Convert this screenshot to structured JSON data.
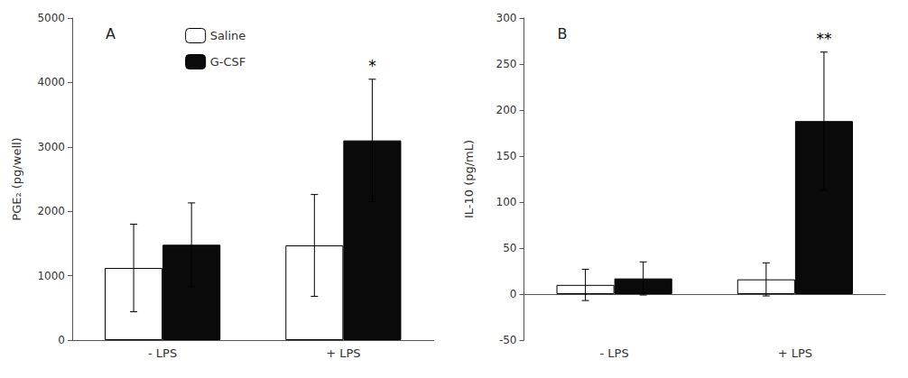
{
  "chart_data": [
    {
      "type": "bar",
      "title": "A",
      "ylabel": "PGE₂ (pg/well)",
      "categories": [
        "- LPS",
        "+ LPS"
      ],
      "series": [
        {
          "name": "Saline",
          "color": "#ffffff",
          "values": [
            1120,
            1470
          ],
          "errors": [
            680,
            790
          ]
        },
        {
          "name": "G-CSF",
          "color": "#0a0a0a",
          "values": [
            1480,
            3100
          ],
          "errors": [
            650,
            950
          ],
          "significance": [
            null,
            "*"
          ]
        }
      ],
      "ylim": [
        0,
        5000
      ],
      "yticks": [
        0,
        1000,
        2000,
        3000,
        4000,
        5000
      ],
      "grid": false,
      "legend": "upper left"
    },
    {
      "type": "bar",
      "title": "B",
      "ylabel": "IL-10 (pg/mL)",
      "categories": [
        "- LPS",
        "+ LPS"
      ],
      "series": [
        {
          "color": "#ffffff",
          "values": [
            10,
            16
          ],
          "errors": [
            17,
            18
          ]
        },
        {
          "color": "#0a0a0a",
          "values": [
            17,
            188
          ],
          "errors": [
            18,
            75
          ],
          "significance": [
            null,
            "**"
          ]
        }
      ],
      "ylim": [
        -50,
        300
      ],
      "yticks": [
        -50,
        0,
        50,
        100,
        150,
        200,
        250,
        300
      ],
      "grid": false
    }
  ]
}
